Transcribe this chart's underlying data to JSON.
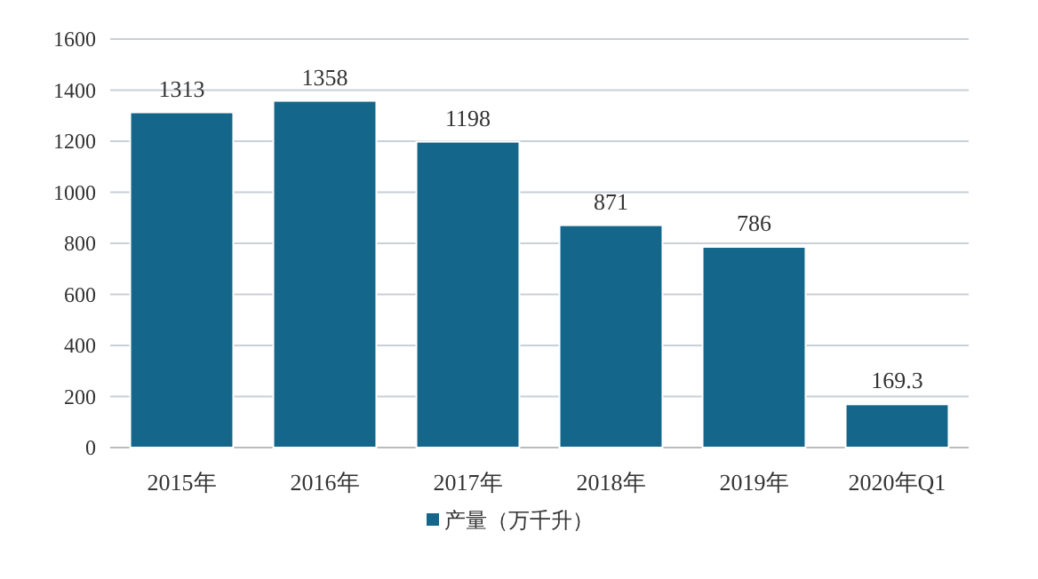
{
  "chart_data": {
    "type": "bar",
    "categories": [
      "2015年",
      "2016年",
      "2017年",
      "2018年",
      "2019年",
      "2020年Q1"
    ],
    "series": [
      {
        "name": "产量（万千升）",
        "color": "#14668a",
        "values": [
          1313,
          1358,
          1198,
          871,
          786,
          169.3
        ]
      }
    ],
    "ylim": [
      0,
      1600
    ],
    "yticks": [
      0,
      200,
      400,
      600,
      800,
      1000,
      1200,
      1400,
      1600
    ],
    "grid": "y",
    "legend": "bottom",
    "data_labels": true
  }
}
